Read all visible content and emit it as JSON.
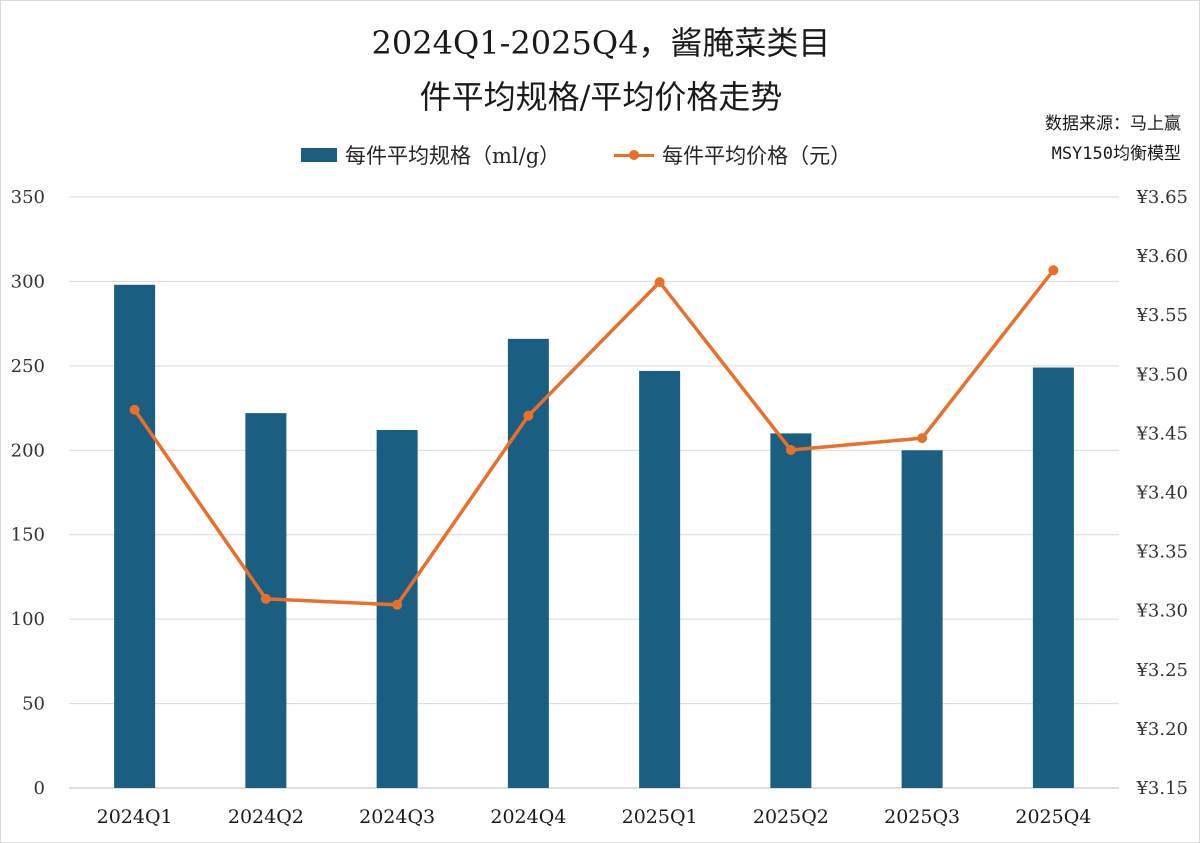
{
  "chart_data": {
    "type": "bar",
    "title_line1": "2024Q1-2025Q4，酱腌菜类目",
    "title_line2": "件平均规格/平均价格走势",
    "source_line1": "数据来源：马上赢",
    "source_line2": "MSY150均衡模型",
    "categories": [
      "2024Q1",
      "2024Q2",
      "2024Q3",
      "2024Q4",
      "2025Q1",
      "2025Q2",
      "2025Q3",
      "2025Q4"
    ],
    "series": [
      {
        "name": "每件平均规格（ml/g）",
        "type": "bar",
        "axis": "left",
        "color": "#1a5e82",
        "values": [
          298,
          222,
          212,
          266,
          247,
          210,
          200,
          249
        ]
      },
      {
        "name": "每件平均价格（元）",
        "type": "line",
        "axis": "right",
        "color": "#e8702a",
        "values": [
          3.47,
          3.31,
          3.305,
          3.465,
          3.578,
          3.436,
          3.446,
          3.588
        ]
      }
    ],
    "left_axis": {
      "ylim": [
        0,
        350
      ],
      "ticks": [
        0,
        50,
        100,
        150,
        200,
        250,
        300,
        350
      ],
      "tick_labels": [
        "0",
        "50",
        "100",
        "150",
        "200",
        "250",
        "300",
        "350"
      ]
    },
    "right_axis": {
      "ylim": [
        3.15,
        3.65
      ],
      "ticks": [
        3.15,
        3.2,
        3.25,
        3.3,
        3.35,
        3.4,
        3.45,
        3.5,
        3.55,
        3.6,
        3.65
      ],
      "tick_labels": [
        "¥3.15",
        "¥3.20",
        "¥3.25",
        "¥3.30",
        "¥3.35",
        "¥3.40",
        "¥3.45",
        "¥3.50",
        "¥3.55",
        "¥3.60",
        "¥3.65"
      ]
    },
    "grid": true,
    "legend_position": "top"
  }
}
